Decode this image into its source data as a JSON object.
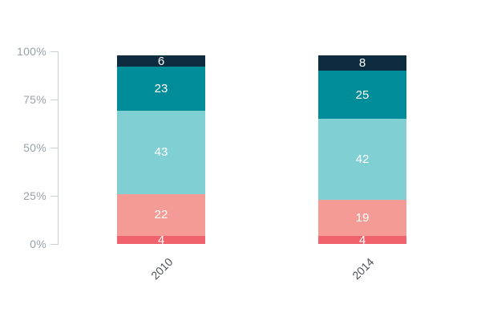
{
  "chart_data": {
    "type": "bar",
    "stacked": true,
    "title": "",
    "xlabel": "",
    "ylabel": "",
    "categories": [
      "2010",
      "2014"
    ],
    "series": [
      {
        "color": "#f0636c",
        "values": [
          4,
          4
        ]
      },
      {
        "color": "#f59b96",
        "values": [
          22,
          19
        ]
      },
      {
        "color": "#80d0d3",
        "values": [
          43,
          42
        ]
      },
      {
        "color": "#008c99",
        "values": [
          23,
          25
        ]
      },
      {
        "color": "#0d2c40",
        "values": [
          6,
          8
        ]
      }
    ],
    "stack_order": "bottom-to-top",
    "yticks": [
      "0%",
      "25%",
      "50%",
      "75%",
      "100%"
    ],
    "ylim": [
      0,
      100
    ],
    "grid": false,
    "legend": "none",
    "value_label_color": "#ffffff"
  },
  "style_colors": {
    "background": "#ffffff",
    "axis_line": "#c9cfd6",
    "y_tick_label": "#9aa2ab",
    "x_tick_label": "#4d525a"
  }
}
